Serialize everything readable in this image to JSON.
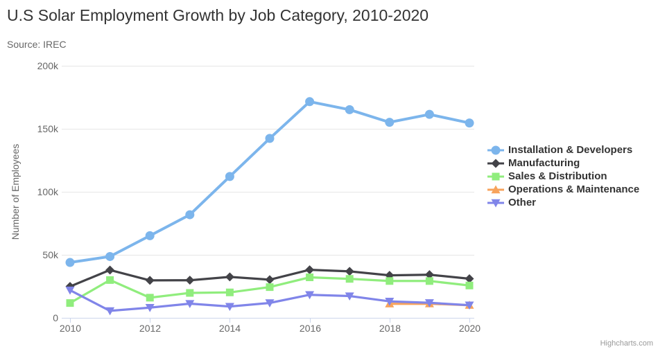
{
  "chart_data": {
    "type": "line",
    "title": "U.S Solar Employment Growth by Job Category, 2010-2020",
    "subtitle": "Source: IREC",
    "xlabel": "",
    "ylabel": "Number of Employees",
    "x": [
      2010,
      2011,
      2012,
      2013,
      2014,
      2015,
      2016,
      2017,
      2018,
      2019,
      2020
    ],
    "xticks": [
      "2010",
      "2012",
      "2014",
      "2016",
      "2018",
      "2020"
    ],
    "ylim": [
      0,
      200000
    ],
    "yticks": [
      {
        "v": 0,
        "label": "0"
      },
      {
        "v": 50000,
        "label": "50k"
      },
      {
        "v": 100000,
        "label": "100k"
      },
      {
        "v": 150000,
        "label": "150k"
      },
      {
        "v": 200000,
        "label": "200k"
      }
    ],
    "grid": true,
    "legend_position": "right",
    "series": [
      {
        "name": "Installation & Developers",
        "color": "#7cb5ec",
        "marker": "circle",
        "values": [
          43934,
          48656,
          65165,
          81827,
          112143,
          142383,
          171533,
          165174,
          155157,
          161454,
          154610
        ]
      },
      {
        "name": "Manufacturing",
        "color": "#434348",
        "marker": "diamond",
        "values": [
          24916,
          37941,
          29742,
          29851,
          32490,
          30282,
          38121,
          36885,
          33726,
          34243,
          31050
        ]
      },
      {
        "name": "Sales & Distribution",
        "color": "#90ed7d",
        "marker": "square",
        "values": [
          11744,
          30000,
          16005,
          19771,
          20185,
          24377,
          32147,
          30912,
          29243,
          29213,
          25663
        ]
      },
      {
        "name": "Operations & Maintenance",
        "color": "#f7a35c",
        "marker": "triangle",
        "values": [
          null,
          null,
          null,
          null,
          null,
          null,
          null,
          null,
          11164,
          11218,
          10077
        ]
      },
      {
        "name": "Other",
        "color": "#8085e9",
        "marker": "triangle-down",
        "values": [
          21908,
          5548,
          8105,
          11248,
          8989,
          11816,
          18274,
          17300,
          13053,
          11906,
          10073
        ]
      }
    ],
    "credit": "Highcharts.com",
    "colors": {
      "grid_line": "#e6e6e6",
      "axis_line": "#ccd6eb",
      "axis_label": "#666666",
      "title_text": "#333333",
      "legend_text": "#333333",
      "credit_text": "#999999"
    }
  }
}
